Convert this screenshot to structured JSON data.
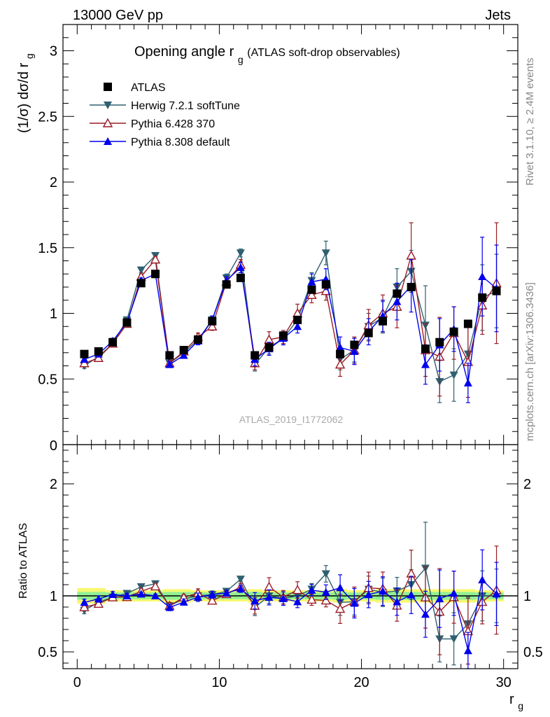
{
  "header": {
    "left": "13000 GeV pp",
    "right": "Jets"
  },
  "side_text": {
    "upper": "Rivet 3.1.10, ≥ 2.4M events",
    "lower": "mcplots.cern.ch [arXiv:1306.3436]"
  },
  "chart_data": {
    "type": "scatter",
    "title_main": "Opening angle r",
    "title_sub": "g",
    "title_rest": "(ATLAS soft-drop observables)",
    "watermark": "ATLAS_2019_I1772062",
    "ylabel_main": "(1/σ) dσ/d r",
    "ylabel_sub": "g",
    "xlabel_main": "r",
    "xlabel_sub": "g",
    "ratio_ylabel": "Ratio to ATLAS",
    "xlim": [
      -1,
      31
    ],
    "ylim": [
      0,
      3.2
    ],
    "ratio_ylim": [
      0.35,
      2.35
    ],
    "x_ticks": [
      0,
      10,
      20,
      30
    ],
    "y_ticks": [
      0.5,
      1,
      1.5,
      2,
      2.5,
      3
    ],
    "y_tick_labels": [
      "0.5",
      "1",
      "1.5",
      "2",
      "2.5",
      "3"
    ],
    "y_zero_label": "0",
    "ratio_ticks": [
      0.5,
      1,
      2
    ],
    "ratio_tick_labels": [
      "0.5",
      "1",
      "2"
    ],
    "x": [
      0.5,
      1.5,
      2.5,
      3.5,
      4.5,
      5.5,
      6.5,
      7.5,
      8.5,
      9.5,
      10.5,
      11.5,
      12.5,
      13.5,
      14.5,
      15.5,
      16.5,
      17.5,
      18.5,
      19.5,
      20.5,
      21.5,
      22.5,
      23.5,
      24.5,
      25.5,
      26.5,
      27.5,
      28.5,
      29.5
    ],
    "legend_position": "top-left",
    "series": [
      {
        "name": "ATLAS",
        "marker": "square",
        "color": "#000000",
        "values": [
          0.69,
          0.71,
          0.78,
          0.93,
          1.23,
          1.3,
          0.68,
          0.72,
          0.8,
          0.94,
          1.22,
          1.27,
          0.68,
          0.74,
          0.83,
          0.95,
          1.18,
          1.22,
          0.69,
          0.76,
          0.85,
          0.94,
          1.15,
          1.2,
          0.73,
          0.78,
          0.86,
          0.92,
          1.12,
          1.17
        ],
        "err": [
          0.01,
          0.01,
          0.01,
          0.01,
          0.01,
          0.01,
          0.01,
          0.01,
          0.01,
          0.01,
          0.01,
          0.01,
          0.01,
          0.01,
          0.01,
          0.01,
          0.01,
          0.01,
          0.01,
          0.01,
          0.01,
          0.01,
          0.01,
          0.01,
          0.01,
          0.01,
          0.01,
          0.01,
          0.01,
          0.01
        ]
      },
      {
        "name": "Herwig 7.2.1 softTune",
        "marker": "triangle-down",
        "color": "#2f6070",
        "values": [
          0.6,
          0.67,
          0.77,
          0.95,
          1.33,
          1.44,
          0.62,
          0.7,
          0.8,
          0.95,
          1.27,
          1.46,
          0.61,
          0.74,
          0.81,
          0.95,
          1.25,
          1.46,
          0.65,
          0.72,
          0.9,
          0.97,
          1.2,
          1.32,
          0.91,
          0.48,
          0.53,
          0.69,
          1.12,
          1.17
        ],
        "err": [
          0.02,
          0.02,
          0.02,
          0.02,
          0.02,
          0.02,
          0.02,
          0.02,
          0.03,
          0.03,
          0.03,
          0.03,
          0.05,
          0.05,
          0.05,
          0.06,
          0.06,
          0.09,
          0.08,
          0.09,
          0.1,
          0.12,
          0.14,
          0.16,
          0.3,
          0.16,
          0.2,
          0.22,
          0.25,
          0.28
        ]
      },
      {
        "name": "Pythia 6.428 370",
        "marker": "triangle-up-open",
        "color": "#9b1b24",
        "values": [
          0.62,
          0.66,
          0.77,
          0.92,
          1.28,
          1.41,
          0.62,
          0.71,
          0.82,
          0.9,
          1.24,
          1.37,
          0.62,
          0.8,
          0.82,
          1.0,
          1.14,
          1.17,
          0.61,
          0.72,
          0.91,
          1.0,
          1.05,
          1.44,
          0.72,
          0.67,
          0.85,
          0.63,
          1.06,
          1.23
        ],
        "err": [
          0.02,
          0.02,
          0.02,
          0.02,
          0.02,
          0.02,
          0.02,
          0.02,
          0.03,
          0.03,
          0.03,
          0.04,
          0.05,
          0.06,
          0.05,
          0.07,
          0.06,
          0.07,
          0.09,
          0.1,
          0.12,
          0.14,
          0.16,
          0.25,
          0.2,
          0.3,
          0.2,
          0.27,
          0.22,
          0.46
        ]
      },
      {
        "name": "Pythia 8.308 default",
        "marker": "triangle-up",
        "color": "#0000ee",
        "values": [
          0.65,
          0.69,
          0.79,
          0.93,
          1.25,
          1.3,
          0.61,
          0.68,
          0.79,
          0.95,
          1.25,
          1.35,
          0.65,
          0.73,
          0.81,
          0.9,
          1.24,
          1.26,
          0.74,
          0.71,
          0.86,
          0.98,
          1.09,
          1.21,
          0.61,
          0.76,
          0.88,
          0.47,
          1.28,
          1.19
        ],
        "err": [
          0.02,
          0.02,
          0.02,
          0.02,
          0.02,
          0.02,
          0.02,
          0.02,
          0.03,
          0.03,
          0.03,
          0.04,
          0.05,
          0.05,
          0.05,
          0.05,
          0.06,
          0.08,
          0.08,
          0.1,
          0.1,
          0.12,
          0.14,
          0.2,
          0.15,
          0.2,
          0.17,
          0.15,
          0.3,
          0.33
        ]
      }
    ],
    "ratio_band_outer": [
      0.07,
      0.07,
      0.05,
      0.05,
      0.05,
      0.05,
      0.06,
      0.06,
      0.05,
      0.05,
      0.05,
      0.05,
      0.06,
      0.05,
      0.05,
      0.05,
      0.05,
      0.05,
      0.06,
      0.05,
      0.05,
      0.06,
      0.06,
      0.06,
      0.06,
      0.06,
      0.06,
      0.06,
      0.05,
      0.05
    ],
    "ratio_band_inner": [
      0.035,
      0.035,
      0.03,
      0.03,
      0.03,
      0.03,
      0.035,
      0.035,
      0.03,
      0.03,
      0.03,
      0.03,
      0.035,
      0.03,
      0.03,
      0.03,
      0.03,
      0.03,
      0.035,
      0.03,
      0.03,
      0.035,
      0.035,
      0.035,
      0.035,
      0.035,
      0.035,
      0.035,
      0.03,
      0.03
    ],
    "band_colors": {
      "outer": "#f6f871",
      "inner": "#92f092"
    }
  }
}
